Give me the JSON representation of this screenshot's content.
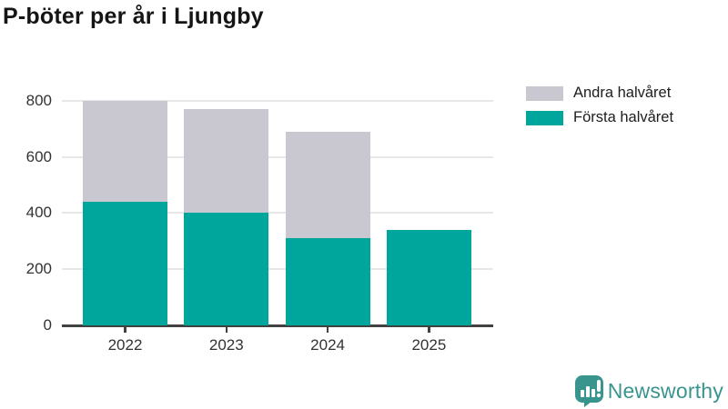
{
  "title": "P-böter per år i Ljungby",
  "legend": {
    "items": [
      {
        "label": "Andra halvåret",
        "color": "#c9c8d0"
      },
      {
        "label": "Första halvåret",
        "color": "#00a59b"
      }
    ]
  },
  "chart_data": {
    "type": "bar",
    "stacked": true,
    "title": "P-böter per år i Ljungby",
    "categories": [
      "2022",
      "2023",
      "2024",
      "2025"
    ],
    "series": [
      {
        "name": "Första halvåret",
        "color": "#00a59b",
        "values": [
          440,
          400,
          310,
          340
        ]
      },
      {
        "name": "Andra halvåret",
        "color": "#c9c8d0",
        "values": [
          360,
          370,
          380,
          0
        ]
      }
    ],
    "totals": [
      800,
      770,
      690,
      340
    ],
    "xlabel": "",
    "ylabel": "",
    "ylim": [
      0,
      800
    ],
    "yticks": [
      0,
      200,
      400,
      600,
      800
    ],
    "grid": true,
    "legend_position": "top-right"
  },
  "footer": {
    "brand": "Newsworthy",
    "brand_color": "#3a948e"
  },
  "colors": {
    "axis": "#414141",
    "gridline": "#e7e7e7",
    "tick_text": "#333333",
    "title_text": "#151515",
    "background": "#ffffff"
  }
}
